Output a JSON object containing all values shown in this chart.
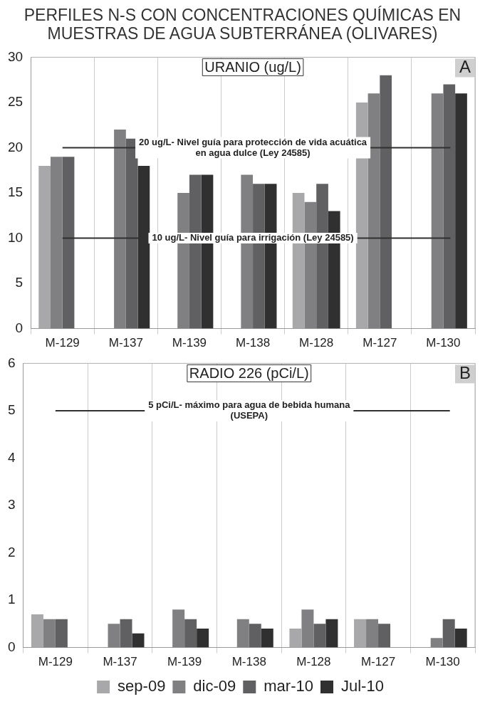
{
  "chart_data": [
    {
      "type": "bar",
      "title": "PERFILES N-S CON CONCENTRACIONES QUÍMICAS EN MUESTRAS DE AGUA SUBTERRÁNEA (OLIVARES)",
      "subtitle": "URANIO (ug/L)",
      "annotations": [
        "A"
      ],
      "categories": [
        "M-129",
        "M-137",
        "M-139",
        "M-138",
        "M-128",
        "M-127",
        "M-130"
      ],
      "series": [
        {
          "color": "#a8a8aa",
          "values": [
            18,
            null,
            null,
            null,
            15,
            25,
            null
          ]
        },
        {
          "color": "#808082",
          "values": [
            19,
            22,
            15,
            17,
            14,
            26,
            26
          ]
        },
        {
          "color": "#606062",
          "values": [
            19,
            21,
            17,
            16,
            16,
            28,
            27
          ]
        },
        {
          "color": "#303030",
          "values": [
            null,
            18,
            17,
            16,
            13,
            null,
            26
          ]
        }
      ],
      "ylim": [
        0,
        30
      ],
      "yticks": [
        0,
        5,
        10,
        15,
        20,
        25,
        30
      ],
      "grid": "x",
      "legend": false,
      "ref_lines": [
        {
          "axis": "y",
          "value": 20,
          "label": "20 ug/L- Nivel guía para protección de vida acuática en agua dulce (Ley 24585)",
          "color": "#303030"
        },
        {
          "axis": "y",
          "value": 10,
          "label": "10 ug/L- Nivel guía para irrigación (Ley 24585)",
          "color": "#303030"
        }
      ]
    },
    {
      "type": "bar",
      "subtitle": "RADIO 226 (pCi/L)",
      "annotations": [
        "B"
      ],
      "categories": [
        "M-129",
        "M-137",
        "M-139",
        "M-138",
        "M-128",
        "M-127",
        "M-130"
      ],
      "series": [
        {
          "name": "sep-09",
          "color": "#a8a8aa",
          "values": [
            0.7,
            null,
            null,
            null,
            0.4,
            0.6,
            null
          ]
        },
        {
          "name": "dic-09",
          "color": "#808082",
          "values": [
            0.6,
            0.5,
            0.8,
            0.6,
            0.8,
            0.6,
            0.2
          ]
        },
        {
          "name": "mar-10",
          "color": "#606062",
          "values": [
            0.6,
            0.6,
            0.6,
            0.5,
            0.5,
            0.5,
            0.6
          ]
        },
        {
          "name": "Jul-10",
          "color": "#303030",
          "values": [
            null,
            0.3,
            0.4,
            0.4,
            0.6,
            null,
            0.4
          ]
        }
      ],
      "ylim": [
        0,
        6
      ],
      "yticks": [
        0,
        1,
        2,
        3,
        4,
        5,
        6
      ],
      "grid": "x",
      "legend": "bottom",
      "ref_lines": [
        {
          "axis": "y",
          "value": 5,
          "label": "5 pCi/L- máximo para agua de bebida humana (USEPA)",
          "color": "#303030"
        }
      ]
    }
  ]
}
